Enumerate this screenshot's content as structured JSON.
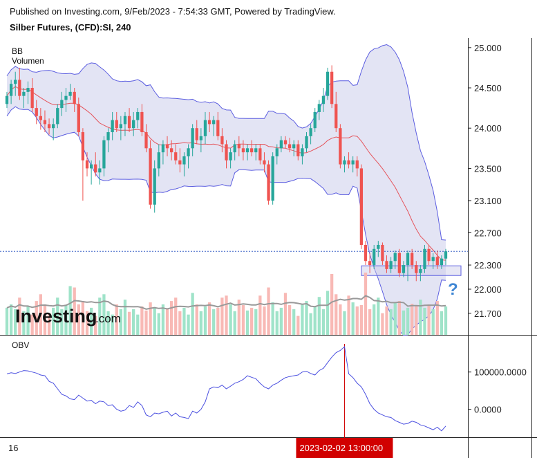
{
  "header": {
    "published": "Published on Investing.com, 9/Feb/2023 - 7:54:33 GMT, Powered by TradingView.",
    "instrument": "Silber Futures, (CFD):SI, 240"
  },
  "legend": {
    "bb": "BB",
    "volume": "Volumen",
    "obv": "OBV"
  },
  "logo": {
    "name": "Investing",
    "domain": ".com"
  },
  "question_mark": "?",
  "x_axis": {
    "first_label": "16",
    "crosshair_label": "2023-02-02 13:00:00"
  },
  "colors": {
    "up": "#26a69a",
    "down": "#ef5350",
    "up_volume": "#9fe3c9",
    "down_volume": "#f8b9b5",
    "bb_line": "#5b5de0",
    "bb_fill": "#e3e4f4",
    "basis": "#e5545b",
    "obv": "#4a4fe0",
    "crosshair": "#d10000",
    "current_price_line": "#3b62c7",
    "volume_ma": "#999999",
    "range_box": "#c9cae8",
    "question": "#3f86d4"
  },
  "chart_data": {
    "type": "candlestick",
    "title": "Silber Futures, (CFD):SI, 240",
    "ylabel": "",
    "xlabel": "",
    "y_ticks": [
      "25.000",
      "24.500",
      "24.000",
      "23.500",
      "23.100",
      "22.700",
      "22.300",
      "22.000",
      "21.700"
    ],
    "y_tick_values": [
      25.0,
      24.5,
      24.0,
      23.5,
      23.1,
      22.7,
      22.3,
      22.0,
      21.7
    ],
    "ylim": [
      21.45,
      25.05
    ],
    "current_price": 22.47,
    "crosshair_index": 80,
    "range_band": [
      22.17,
      22.29
    ],
    "candles": [
      [
        24.3,
        24.45,
        24.25,
        24.4
      ],
      [
        24.4,
        24.6,
        24.3,
        24.55
      ],
      [
        24.55,
        24.7,
        24.4,
        24.6
      ],
      [
        24.6,
        24.75,
        24.35,
        24.4
      ],
      [
        24.4,
        24.5,
        24.25,
        24.45
      ],
      [
        24.45,
        24.58,
        24.3,
        24.5
      ],
      [
        24.5,
        24.62,
        24.2,
        24.25
      ],
      [
        24.25,
        24.35,
        24.05,
        24.15
      ],
      [
        24.15,
        24.25,
        23.98,
        24.1
      ],
      [
        24.1,
        24.22,
        23.95,
        24.05
      ],
      [
        24.05,
        24.12,
        23.92,
        24.0
      ],
      [
        24.0,
        24.12,
        23.85,
        24.05
      ],
      [
        24.05,
        24.3,
        24.0,
        24.25
      ],
      [
        24.25,
        24.45,
        24.15,
        24.35
      ],
      [
        24.35,
        24.5,
        24.2,
        24.4
      ],
      [
        24.4,
        24.55,
        24.35,
        24.45
      ],
      [
        24.45,
        24.5,
        24.2,
        24.3
      ],
      [
        24.3,
        24.38,
        23.9,
        23.95
      ],
      [
        23.95,
        24.0,
        23.1,
        23.6
      ],
      [
        23.6,
        23.7,
        23.4,
        23.5
      ],
      [
        23.5,
        23.6,
        23.3,
        23.55
      ],
      [
        23.55,
        23.7,
        23.4,
        23.45
      ],
      [
        23.45,
        23.6,
        23.3,
        23.5
      ],
      [
        23.5,
        23.9,
        23.4,
        23.85
      ],
      [
        23.85,
        24.0,
        23.7,
        23.95
      ],
      [
        23.95,
        24.2,
        23.85,
        24.1
      ],
      [
        24.1,
        24.2,
        23.95,
        24.0
      ],
      [
        24.0,
        24.15,
        23.85,
        24.05
      ],
      [
        24.05,
        24.2,
        23.9,
        24.15
      ],
      [
        24.15,
        24.25,
        23.95,
        24.0
      ],
      [
        24.0,
        24.2,
        23.9,
        24.1
      ],
      [
        24.1,
        24.25,
        24.0,
        24.2
      ],
      [
        24.2,
        24.3,
        23.9,
        23.95
      ],
      [
        23.95,
        24.05,
        23.7,
        23.75
      ],
      [
        23.75,
        23.85,
        23.0,
        23.05
      ],
      [
        23.05,
        23.6,
        22.95,
        23.5
      ],
      [
        23.5,
        23.8,
        23.4,
        23.7
      ],
      [
        23.7,
        23.85,
        23.55,
        23.8
      ],
      [
        23.8,
        23.9,
        23.65,
        23.75
      ],
      [
        23.75,
        23.85,
        23.6,
        23.7
      ],
      [
        23.7,
        23.8,
        23.55,
        23.6
      ],
      [
        23.6,
        23.75,
        23.45,
        23.55
      ],
      [
        23.55,
        23.7,
        23.4,
        23.65
      ],
      [
        23.65,
        23.8,
        23.5,
        23.75
      ],
      [
        23.75,
        24.05,
        23.65,
        24.0
      ],
      [
        24.0,
        24.1,
        23.8,
        23.85
      ],
      [
        23.85,
        24.0,
        23.7,
        23.9
      ],
      [
        23.9,
        24.2,
        23.8,
        24.1
      ],
      [
        24.1,
        24.2,
        23.95,
        24.05
      ],
      [
        24.05,
        24.15,
        23.9,
        24.1
      ],
      [
        24.1,
        24.2,
        23.85,
        23.9
      ],
      [
        23.9,
        24.0,
        23.7,
        23.8
      ],
      [
        23.8,
        23.85,
        23.5,
        23.6
      ],
      [
        23.6,
        23.75,
        23.5,
        23.7
      ],
      [
        23.7,
        23.85,
        23.6,
        23.8
      ],
      [
        23.8,
        23.9,
        23.65,
        23.75
      ],
      [
        23.75,
        23.85,
        23.6,
        23.7
      ],
      [
        23.7,
        23.8,
        23.6,
        23.75
      ],
      [
        23.75,
        23.85,
        23.65,
        23.7
      ],
      [
        23.7,
        23.8,
        23.6,
        23.75
      ],
      [
        23.75,
        23.8,
        23.55,
        23.6
      ],
      [
        23.6,
        23.7,
        23.45,
        23.55
      ],
      [
        23.55,
        23.6,
        23.05,
        23.1
      ],
      [
        23.1,
        23.7,
        23.05,
        23.65
      ],
      [
        23.65,
        23.8,
        23.55,
        23.75
      ],
      [
        23.75,
        23.9,
        23.7,
        23.85
      ],
      [
        23.85,
        23.9,
        23.75,
        23.8
      ],
      [
        23.8,
        23.88,
        23.7,
        23.75
      ],
      [
        23.75,
        23.85,
        23.65,
        23.8
      ],
      [
        23.8,
        23.85,
        23.6,
        23.65
      ],
      [
        23.65,
        23.8,
        23.55,
        23.75
      ],
      [
        23.75,
        23.95,
        23.7,
        23.9
      ],
      [
        23.9,
        24.05,
        23.8,
        24.0
      ],
      [
        24.0,
        24.25,
        23.95,
        24.2
      ],
      [
        24.2,
        24.35,
        24.1,
        24.3
      ],
      [
        24.3,
        24.5,
        24.2,
        24.4
      ],
      [
        24.4,
        24.75,
        24.35,
        24.7
      ],
      [
        24.7,
        24.78,
        24.25,
        24.3
      ],
      [
        24.3,
        24.45,
        23.95,
        24.0
      ],
      [
        24.0,
        24.05,
        23.5,
        23.55
      ],
      [
        23.55,
        23.65,
        23.45,
        23.6
      ],
      [
        23.6,
        23.7,
        23.5,
        23.55
      ],
      [
        23.55,
        23.65,
        23.45,
        23.6
      ],
      [
        23.6,
        23.65,
        23.4,
        23.5
      ],
      [
        23.5,
        23.55,
        22.5,
        22.55
      ],
      [
        22.55,
        22.6,
        22.3,
        22.35
      ],
      [
        22.35,
        22.45,
        22.2,
        22.3
      ],
      [
        22.3,
        22.55,
        22.25,
        22.5
      ],
      [
        22.5,
        22.6,
        22.4,
        22.55
      ],
      [
        22.55,
        22.58,
        22.3,
        22.35
      ],
      [
        22.35,
        22.42,
        22.2,
        22.25
      ],
      [
        22.25,
        22.4,
        22.2,
        22.35
      ],
      [
        22.35,
        22.48,
        22.25,
        22.45
      ],
      [
        22.45,
        22.5,
        22.15,
        22.2
      ],
      [
        22.2,
        22.35,
        22.15,
        22.3
      ],
      [
        22.3,
        22.48,
        22.1,
        22.45
      ],
      [
        22.45,
        22.5,
        22.25,
        22.3
      ],
      [
        22.3,
        22.35,
        22.1,
        22.2
      ],
      [
        22.2,
        22.3,
        22.1,
        22.25
      ],
      [
        22.25,
        22.55,
        22.2,
        22.5
      ],
      [
        22.5,
        22.55,
        22.3,
        22.35
      ],
      [
        22.35,
        22.45,
        22.25,
        22.4
      ],
      [
        22.4,
        22.48,
        22.25,
        22.3
      ],
      [
        22.3,
        22.42,
        22.25,
        22.38
      ],
      [
        22.38,
        22.5,
        22.3,
        22.47
      ]
    ],
    "volume": [
      40,
      45,
      38,
      55,
      35,
      42,
      30,
      50,
      60,
      45,
      32,
      40,
      55,
      38,
      44,
      72,
      70,
      45,
      50,
      35,
      40,
      28,
      55,
      60,
      35,
      30,
      45,
      38,
      52,
      34,
      38,
      30,
      42,
      36,
      48,
      40,
      32,
      45,
      38,
      50,
      55,
      35,
      40,
      30,
      62,
      45,
      35,
      42,
      48,
      38,
      40,
      55,
      58,
      45,
      35,
      52,
      44,
      36,
      40,
      38,
      58,
      42,
      70,
      48,
      35,
      40,
      62,
      44,
      38,
      28,
      46,
      50,
      32,
      42,
      56,
      38,
      65,
      90,
      60,
      45,
      35,
      58,
      48,
      42,
      44,
      92,
      38,
      45,
      55,
      32,
      42,
      38,
      48,
      50,
      36,
      40,
      46,
      44,
      52,
      40,
      45,
      38,
      50,
      35,
      42
    ],
    "obv": [
      95,
      98,
      96,
      100,
      104,
      103,
      100,
      97,
      92,
      90,
      75,
      70,
      55,
      40,
      36,
      28,
      26,
      38,
      30,
      22,
      24,
      15,
      22,
      20,
      10,
      12,
      0,
      -5,
      -2,
      10,
      5,
      20,
      10,
      -15,
      -20,
      -10,
      -12,
      -8,
      -5,
      -18,
      -10,
      -20,
      -22,
      -25,
      -5,
      -10,
      0,
      20,
      55,
      60,
      58,
      65,
      55,
      62,
      70,
      74,
      80,
      90,
      86,
      82,
      70,
      60,
      55,
      65,
      70,
      78,
      85,
      88,
      90,
      92,
      100,
      102,
      96,
      92,
      104,
      110,
      125,
      140,
      152,
      158,
      168,
      95,
      85,
      70,
      60,
      40,
      15,
      0,
      -10,
      -15,
      -20,
      -22,
      -30,
      -35,
      -40,
      -38,
      -32,
      -35,
      -42,
      -45,
      -50,
      -55,
      -48,
      -58,
      -45
    ]
  }
}
